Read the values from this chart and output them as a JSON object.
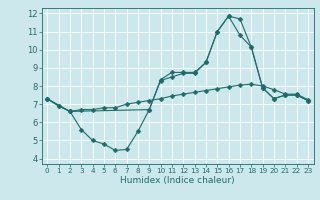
{
  "background_color": "#cce8ec",
  "grid_color": "#b0d4d8",
  "line_color": "#1e6b6b",
  "xlabel": "Humidex (Indice chaleur)",
  "xlim": [
    -0.5,
    23.5
  ],
  "ylim": [
    3.7,
    12.3
  ],
  "xticks": [
    0,
    1,
    2,
    3,
    4,
    5,
    6,
    7,
    8,
    9,
    10,
    11,
    12,
    13,
    14,
    15,
    16,
    17,
    18,
    19,
    20,
    21,
    22,
    23
  ],
  "yticks": [
    4,
    5,
    6,
    7,
    8,
    9,
    10,
    11,
    12
  ],
  "series1_x": [
    0,
    1,
    2,
    3,
    4,
    5,
    6,
    7,
    8,
    9,
    10,
    11,
    12,
    13,
    14,
    15,
    16,
    17,
    18,
    19,
    20,
    21,
    22,
    23
  ],
  "series1_y": [
    7.3,
    6.9,
    6.6,
    6.7,
    6.7,
    6.8,
    6.8,
    7.0,
    7.1,
    7.2,
    7.3,
    7.45,
    7.55,
    7.65,
    7.75,
    7.85,
    7.95,
    8.05,
    8.1,
    8.0,
    7.8,
    7.55,
    7.55,
    7.25
  ],
  "series2_x": [
    0,
    2,
    3,
    4,
    5,
    6,
    7,
    8,
    9,
    10,
    11,
    12,
    13,
    14,
    15,
    16,
    17,
    18,
    19,
    20,
    21,
    22,
    23
  ],
  "series2_y": [
    7.3,
    6.6,
    5.6,
    5.0,
    4.8,
    4.45,
    4.5,
    5.5,
    6.7,
    8.3,
    8.5,
    8.7,
    8.7,
    9.3,
    11.0,
    11.85,
    11.7,
    10.15,
    7.9,
    7.3,
    7.5,
    7.5,
    7.2
  ],
  "series3_x": [
    0,
    1,
    2,
    9,
    10,
    11,
    12,
    13,
    14,
    15,
    16,
    17,
    18,
    19,
    20,
    21,
    22,
    23
  ],
  "series3_y": [
    7.3,
    6.9,
    6.6,
    6.7,
    8.35,
    8.75,
    8.75,
    8.75,
    9.3,
    11.0,
    11.85,
    10.8,
    10.15,
    7.9,
    7.3,
    7.5,
    7.5,
    7.2
  ]
}
